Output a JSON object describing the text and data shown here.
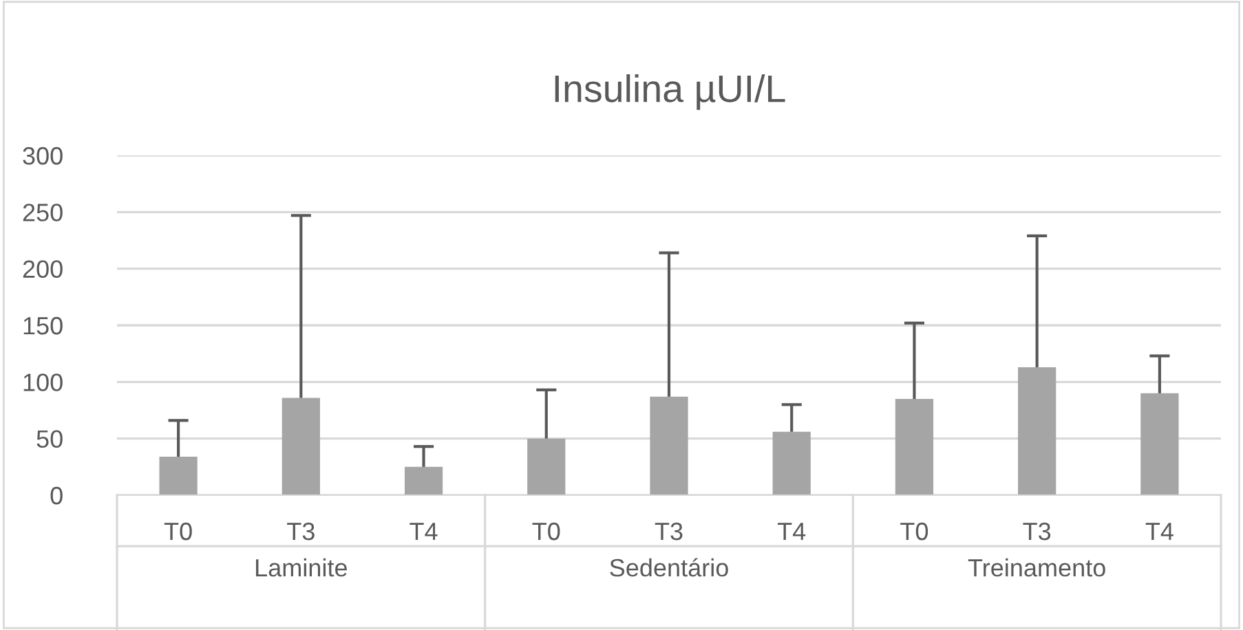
{
  "chart_data": {
    "type": "bar",
    "title": "Insulina µUI/L",
    "categories": [
      "T0",
      "T3",
      "T4",
      "T0",
      "T3",
      "T4",
      "T0",
      "T3",
      "T4"
    ],
    "values": [
      34,
      86,
      25,
      50,
      87,
      56,
      85,
      113,
      90
    ],
    "errors": [
      [
        34,
        66
      ],
      [
        86,
        247
      ],
      [
        25,
        43
      ],
      [
        50,
        93
      ],
      [
        87,
        214
      ],
      [
        56,
        80
      ],
      [
        85,
        152
      ],
      [
        113,
        229
      ],
      [
        90,
        123
      ]
    ],
    "color": "#a5a5a5",
    "annotations": [
      "Laminite",
      "Sedentário",
      "Treinamento"
    ],
    "ylim": [
      0,
      300
    ],
    "yticks": [
      0,
      50,
      100,
      150,
      200,
      250,
      300
    ],
    "grid": "y"
  }
}
